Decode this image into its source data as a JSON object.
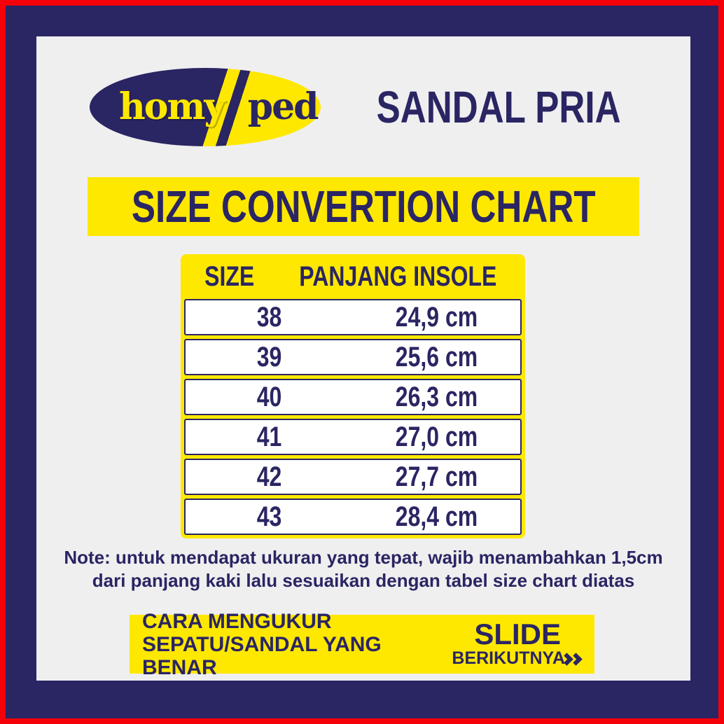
{
  "colors": {
    "border_red": "#f50008",
    "frame_navy": "#2a2563",
    "accent_yellow": "#ffe800",
    "background": "#efeff0",
    "row_white": "#ffffff"
  },
  "header": {
    "logo_left": "homy",
    "logo_right": "ped",
    "title": "SANDAL PRIA"
  },
  "banner": {
    "title": "SIZE CONVERTION CHART"
  },
  "chart_data": {
    "type": "table",
    "title": "SIZE CONVERTION CHART",
    "columns": [
      "SIZE",
      "PANJANG INSOLE"
    ],
    "rows": [
      [
        "38",
        "24,9 cm"
      ],
      [
        "39",
        "25,6 cm"
      ],
      [
        "40",
        "26,3 cm"
      ],
      [
        "41",
        "27,0 cm"
      ],
      [
        "42",
        "27,7 cm"
      ],
      [
        "43",
        "28,4 cm"
      ]
    ]
  },
  "note": {
    "line1": "Note: untuk mendapat ukuran yang tepat, wajib menambahkan 1,5cm",
    "line2": "dari panjang kaki lalu sesuaikan dengan tabel size chart diatas"
  },
  "footer": {
    "left_line1": "CARA MENGUKUR",
    "left_line2": "SEPATU/SANDAL YANG BENAR",
    "slide_label": "SLIDE",
    "next_label": "BERIKUTNYA"
  }
}
